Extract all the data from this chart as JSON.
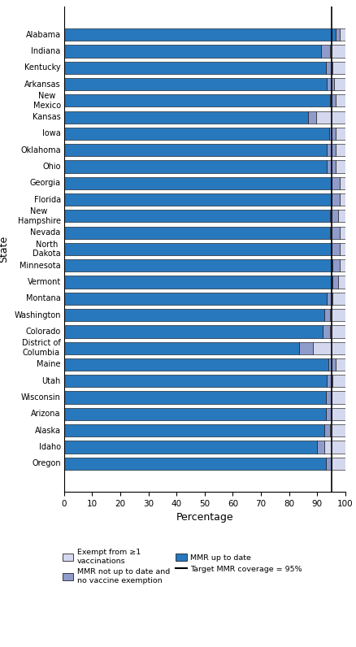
{
  "states": [
    "Alabama",
    "Indiana",
    "Kentucky",
    "Arkansas",
    "New\nMexico",
    "Kansas",
    "Iowa",
    "Oklahoma",
    "Ohio",
    "Georgia",
    "Florida",
    "New\nHampshire",
    "Nevada",
    "North\nDakota",
    "Minnesota",
    "Vermont",
    "Montana",
    "Washington",
    "Colorado",
    "District of\nColumbia",
    "Maine",
    "Utah",
    "Wisconsin",
    "Arizona",
    "Alaska",
    "Idaho",
    "Oregon"
  ],
  "mmr_up_to_date": [
    96.5,
    91.5,
    93.2,
    93.5,
    94.5,
    86.8,
    94.3,
    93.5,
    93.5,
    95.0,
    95.0,
    94.5,
    94.5,
    95.0,
    95.5,
    95.5,
    93.5,
    92.5,
    92.0,
    83.5,
    94.0,
    93.5,
    93.0,
    93.0,
    92.5,
    90.0,
    93.0
  ],
  "exempt": [
    2.0,
    5.5,
    4.5,
    4.0,
    3.5,
    10.5,
    3.5,
    3.5,
    3.5,
    2.0,
    2.0,
    2.5,
    2.0,
    2.0,
    2.0,
    2.5,
    4.5,
    5.5,
    5.5,
    11.5,
    3.5,
    4.5,
    5.0,
    5.0,
    5.5,
    7.5,
    5.0
  ],
  "not_utd_not_exempt": [
    1.5,
    3.0,
    2.3,
    2.5,
    2.0,
    2.7,
    2.2,
    3.0,
    3.0,
    3.0,
    3.0,
    3.0,
    3.5,
    3.0,
    2.5,
    2.0,
    2.0,
    2.0,
    2.5,
    5.0,
    2.5,
    2.0,
    2.0,
    2.0,
    2.0,
    2.5,
    2.0
  ],
  "mmr_color": "#2878be",
  "exempt_color": "#d4d8ee",
  "not_utd_color": "#8e9bcb",
  "target_line": 95,
  "xlabel": "Percentage",
  "ylabel": "State",
  "xlim": [
    0,
    100
  ],
  "bar_height": 0.75,
  "legend_labels": [
    "Exempt from ≥1\nvaccinations",
    "MMR not up to date and\nno vaccine exemption",
    "MMR up to date",
    "Target MMR coverage = 95%"
  ]
}
